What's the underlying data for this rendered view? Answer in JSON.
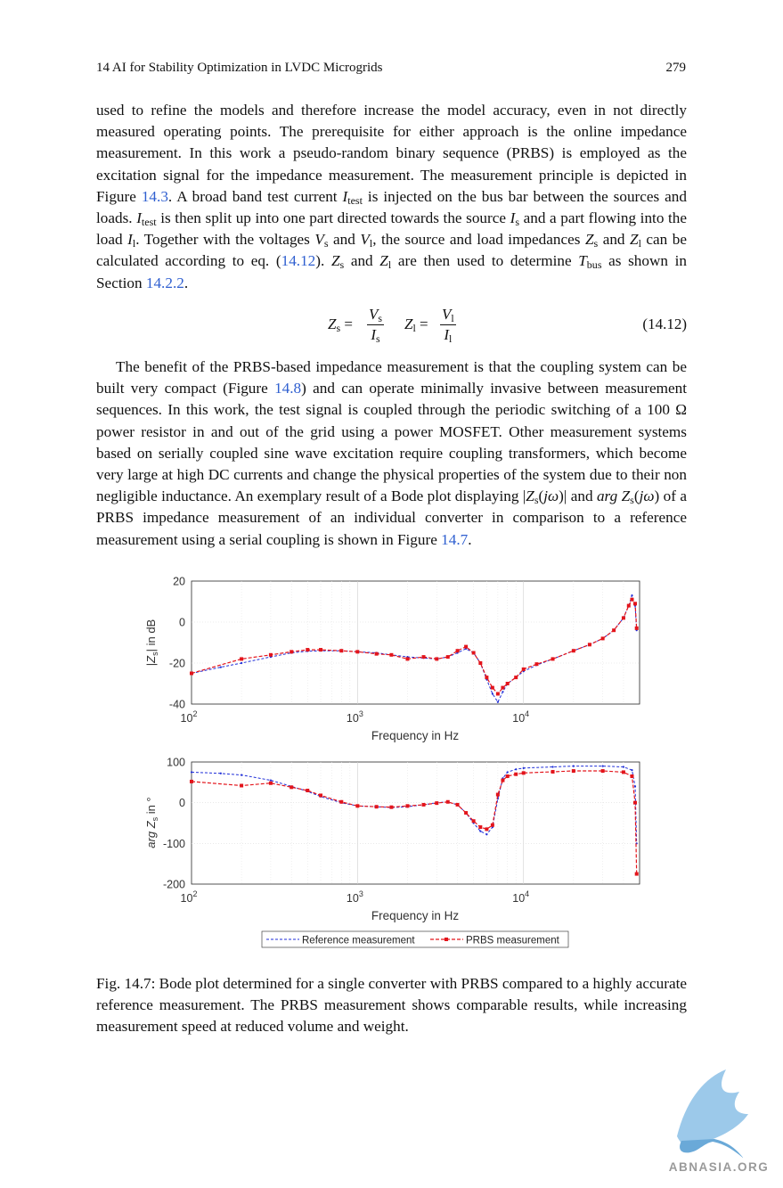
{
  "header": {
    "chapter": "14  AI for Stability Optimization in LVDC Microgrids",
    "page": "279"
  },
  "colors": {
    "link": "#2f5fd0",
    "reference": "#1f2ed8",
    "prbs": "#e3141b"
  },
  "chart_data": [
    {
      "type": "line",
      "title": "",
      "xlabel": "Frequency in Hz",
      "ylabel": "|Zs| in dB",
      "xscale": "log",
      "xlim": [
        100,
        50000
      ],
      "ylim": [
        -40,
        20
      ],
      "yticks": [
        20,
        0,
        -20,
        -40
      ],
      "xticks": [
        100,
        1000,
        10000
      ],
      "grid": true,
      "series": [
        {
          "name": "Reference measurement",
          "x": [
            100,
            150,
            200,
            300,
            400,
            500,
            600,
            800,
            1000,
            1300,
            1600,
            2000,
            2500,
            3000,
            3500,
            4000,
            4500,
            5000,
            5500,
            6000,
            6500,
            7000,
            7500,
            8000,
            9000,
            10000,
            12000,
            15000,
            20000,
            25000,
            30000,
            35000,
            40000,
            43000,
            45000,
            47000,
            48000
          ],
          "y": [
            -25,
            -22,
            -20,
            -17,
            -15,
            -14.2,
            -14,
            -14,
            -14.5,
            -15,
            -16,
            -17,
            -17.5,
            -18,
            -17,
            -15,
            -13,
            -15,
            -20,
            -28,
            -35,
            -39,
            -34,
            -30,
            -27,
            -24,
            -21,
            -18,
            -14,
            -11,
            -8,
            -4,
            2,
            8,
            13,
            8,
            -4
          ]
        },
        {
          "name": "PRBS measurement",
          "x": [
            100,
            200,
            300,
            400,
            500,
            600,
            800,
            1000,
            1300,
            1600,
            2000,
            2500,
            3000,
            3500,
            4000,
            4500,
            5000,
            5500,
            6000,
            6500,
            7000,
            7500,
            8000,
            9000,
            10000,
            12000,
            15000,
            20000,
            25000,
            30000,
            35000,
            40000,
            43000,
            45000,
            47000,
            48000
          ],
          "y": [
            -25,
            -18,
            -16,
            -14.5,
            -13.5,
            -13.5,
            -14,
            -14.5,
            -15.5,
            -16,
            -18,
            -17,
            -18,
            -17,
            -14,
            -12,
            -15,
            -20,
            -27,
            -32,
            -35,
            -32,
            -30,
            -27,
            -23,
            -20.5,
            -18,
            -14,
            -11,
            -8,
            -4,
            2,
            8,
            11,
            9,
            -3
          ]
        }
      ]
    },
    {
      "type": "line",
      "title": "",
      "xlabel": "Frequency in Hz",
      "ylabel": "arg Zs in °",
      "xscale": "log",
      "xlim": [
        100,
        50000
      ],
      "ylim": [
        -200,
        100
      ],
      "yticks": [
        100,
        0,
        -100,
        -200
      ],
      "xticks": [
        100,
        1000,
        10000
      ],
      "grid": true,
      "legend": "bottom",
      "series": [
        {
          "name": "Reference measurement",
          "x": [
            100,
            150,
            200,
            300,
            400,
            500,
            600,
            800,
            1000,
            1300,
            1600,
            2000,
            2500,
            3000,
            3500,
            4000,
            4500,
            5000,
            5500,
            6000,
            6500,
            7000,
            7500,
            8000,
            9000,
            10000,
            15000,
            20000,
            30000,
            40000,
            45000,
            47000,
            48000
          ],
          "y": [
            75,
            72,
            68,
            55,
            40,
            28,
            15,
            0,
            -8,
            -10,
            -12,
            -10,
            -5,
            0,
            2,
            -5,
            -25,
            -50,
            -70,
            -78,
            -60,
            10,
            60,
            75,
            82,
            85,
            88,
            90,
            90,
            88,
            80,
            40,
            -100
          ]
        },
        {
          "name": "PRBS measurement",
          "x": [
            100,
            200,
            300,
            400,
            500,
            600,
            800,
            1000,
            1300,
            1600,
            2000,
            2500,
            3000,
            3500,
            4000,
            4500,
            5000,
            5500,
            6000,
            6500,
            7000,
            7500,
            8000,
            9000,
            10000,
            15000,
            20000,
            30000,
            40000,
            45000,
            47000,
            48000
          ],
          "y": [
            52,
            42,
            48,
            38,
            30,
            18,
            2,
            -8,
            -10,
            -11,
            -8,
            -5,
            -1,
            2,
            -5,
            -25,
            -45,
            -60,
            -65,
            -55,
            20,
            55,
            65,
            70,
            73,
            76,
            78,
            78,
            75,
            65,
            0,
            -175
          ]
        }
      ]
    }
  ],
  "body": {
    "p1": {
      "line1": "used to refine the models and therefore increase the model accuracy, even in not directly measured operating points. The prerequisite for either approach is the online impedance measurement. In this work a pseudo-random binary sequence (PRBS) is employed as the excitation signal for the impedance measurement. The measurement principle is depicted in Figure ",
      "ref1": "14.3",
      "t2": ". A broad band test current ",
      "itest": "I",
      "itest_sub": "test",
      "t3": " is injected on the bus bar between the sources and loads. ",
      "t4": " is then split up into one part directed towards the source ",
      "is": "I",
      "s_sub": "s",
      "t5": " and a part flowing into the load ",
      "il": "I",
      "l_sub": "l",
      "t6": ". Together with the voltages ",
      "vs": "V",
      "t7": " and ",
      "vl": "V",
      "t8": ", the source and load impedances ",
      "zs": "Z",
      "t9": " and ",
      "zl": "Z",
      "t10": " can be calculated according to eq. (",
      "ref2": "14.12",
      "t11": "). ",
      "t12": " and ",
      "t13": " are then used to determine ",
      "tbus": "T",
      "bus_sub": "bus",
      "t14": " as shown in Section ",
      "ref3": "14.2.2",
      "t15": "."
    },
    "eq": {
      "eq_sign": "=",
      "label": "(14.12)"
    },
    "p2": {
      "t1": "The benefit of the PRBS-based impedance measurement is that the coupling system can be built very compact (Figure  ",
      "ref1": "14.8",
      "t2": ") and can operate minimally invasive between measurement sequences. In this work, the test signal is coupled through the periodic switching of a 100 Ω power resistor in and out of the grid using a power MOSFET. Other measurement systems based on serially coupled sine wave excitation require coupling transformers, which become very large at high DC currents and change the physical properties of the system due to their non negligible inductance. An exemplary result of a Bode plot displaying |",
      "t3": "(",
      "jw": "jω",
      "t4": ")| and ",
      "arg": "arg",
      "t5": " of a PRBS impedance measurement of an individual converter in comparison to a reference measurement using a serial coupling is shown in Figure ",
      "ref2": "14.7",
      "t6": "."
    }
  },
  "axis_text": {
    "ten": "10",
    "exp2": "2",
    "exp3": "3",
    "exp4": "4",
    "y1_label_pre": "|",
    "y1_label_sym": "Z",
    "y1_label_sub": "s",
    "y1_label_post": "| in dB",
    "y2_label_arg": "arg",
    "y2_label_sym": "Z",
    "y2_label_sub": "s",
    "y2_label_post": " in °"
  },
  "caption": "Fig. 14.7: Bode plot determined for a single converter with PRBS compared to a highly accurate reference measurement. The PRBS measurement shows comparable results, while increasing measurement speed at reduced volume and weight.",
  "watermark": {
    "text": "ABNASIA.ORG"
  }
}
